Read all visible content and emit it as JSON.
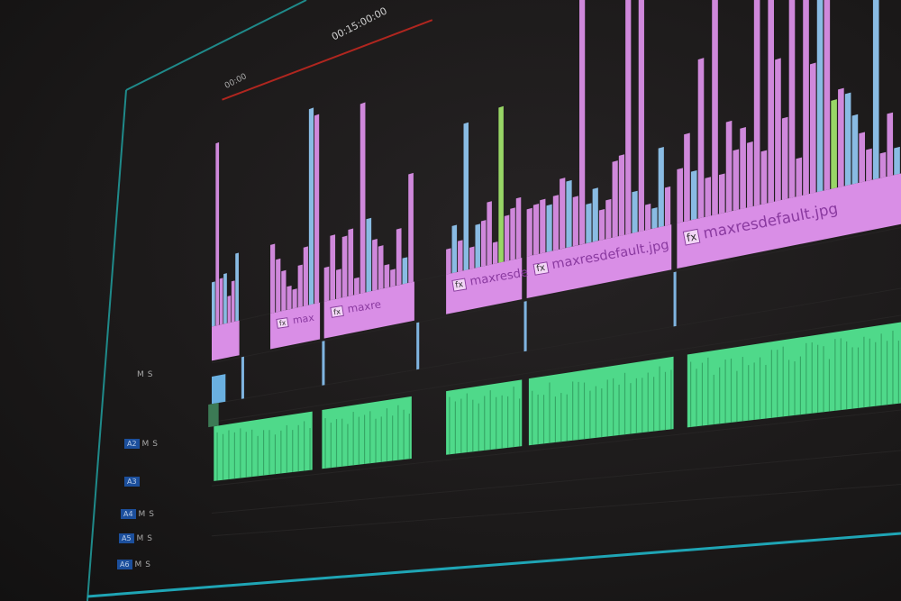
{
  "app": "video-editor-timeline",
  "ruler": {
    "timecode": "00:15:00:00",
    "start_timecode": "00:00"
  },
  "colors": {
    "video_clip": "#d98ee6",
    "audio_clip": "#4fd98a",
    "playhead_line": "#b0261f",
    "track_select": "#1c4f9c",
    "frame_border": "#1f8a8a"
  },
  "video_clips": [
    {
      "label": "",
      "fx": false
    },
    {
      "label": "max",
      "fx": true
    },
    {
      "label": "maxre",
      "fx": true
    },
    {
      "label": "maxresde",
      "fx": true
    },
    {
      "label": "maxresdefault.jpg",
      "fx": true
    },
    {
      "label": "maxresdefault.jpg",
      "fx": true
    }
  ],
  "fx_badge": "fx",
  "audio_tracks": [
    {
      "name": "A2",
      "mute": "M",
      "solo": "S"
    },
    {
      "name": "A3",
      "mute": "",
      "solo": ""
    },
    {
      "name": "A4",
      "mute": "M",
      "solo": "S"
    },
    {
      "name": "A5",
      "mute": "M",
      "solo": "S"
    },
    {
      "name": "A6",
      "mute": "M",
      "solo": "S"
    }
  ],
  "audio_extra": {
    "a1_mute": "M",
    "a1_solo": "S",
    "a1b_mute": "M",
    "a1b_solo": "S"
  }
}
